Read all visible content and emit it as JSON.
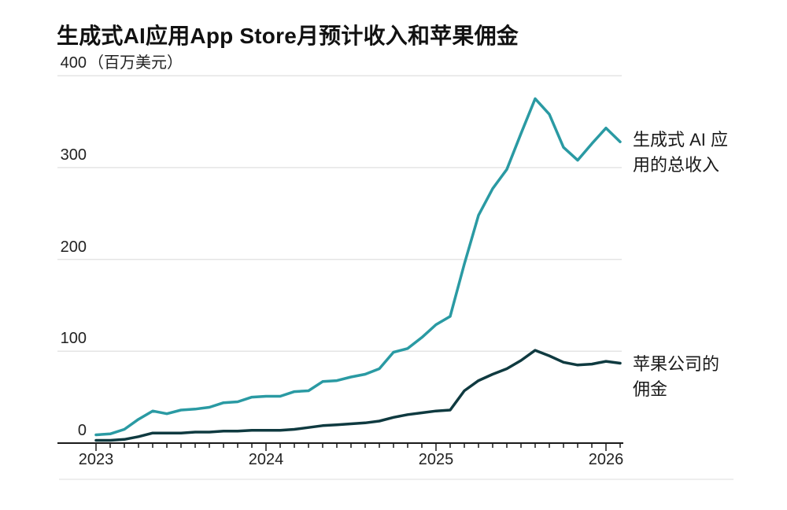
{
  "chart_data": {
    "type": "line",
    "title": "生成式AI应用App Store月预计收入和苹果佣金",
    "unit_label": "（百万美元）",
    "ylabel": "百万美元",
    "ylim": [
      0,
      400
    ],
    "y_ticks": [
      0,
      100,
      200,
      300,
      400
    ],
    "x_tick_years": [
      "2023",
      "2024",
      "2025",
      "2026"
    ],
    "x_start": "2023-01",
    "x_end": "2026-02",
    "x_interval": "monthly",
    "grid": "horizontal",
    "legend_position": "right-annotations",
    "series": [
      {
        "name": "生成式 AI 应用的总收入",
        "color": "#2a9aa3",
        "values": [
          9,
          10,
          15,
          26,
          35,
          32,
          36,
          37,
          39,
          44,
          45,
          50,
          51,
          51,
          56,
          57,
          67,
          68,
          72,
          75,
          81,
          99,
          103,
          115,
          129,
          138,
          195,
          248,
          277,
          298,
          337,
          375,
          358,
          322,
          308,
          326,
          343,
          328
        ]
      },
      {
        "name": "苹果公司的佣金",
        "color": "#0f3a40",
        "values": [
          3,
          3,
          4,
          7,
          11,
          11,
          11,
          12,
          12,
          13,
          13,
          14,
          14,
          14,
          15,
          17,
          19,
          20,
          21,
          22,
          24,
          28,
          31,
          33,
          35,
          36,
          57,
          68,
          75,
          81,
          90,
          101,
          95,
          88,
          85,
          86,
          89,
          87
        ]
      }
    ],
    "annotations": [
      {
        "text": "生成式 AI 应\n用的总收入",
        "series": "生成式 AI 应用的总收入"
      },
      {
        "text": "苹果公司的\n佣金",
        "series": "苹果公司的佣金"
      }
    ],
    "colors": {
      "revenue_line": "#2a9aa3",
      "commission_line": "#0f3a40",
      "gridline": "#e4e4e4",
      "axis": "#1a1a1a",
      "title_text": "#111111",
      "tick_text": "#222222",
      "footer_divider": "#e8e8e8"
    }
  }
}
